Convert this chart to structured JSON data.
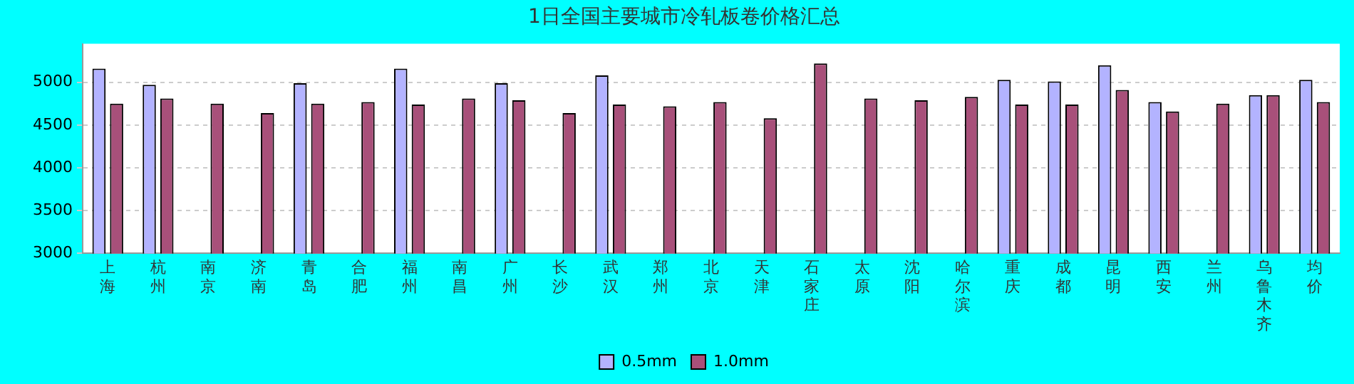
{
  "chart_data": {
    "type": "bar",
    "title": "1日全国主要城市冷轧板卷价格汇总",
    "categories": [
      "上海",
      "杭州",
      "南京",
      "济南",
      "青岛",
      "合肥",
      "福州",
      "南昌",
      "广州",
      "长沙",
      "武汉",
      "郑州",
      "北京",
      "天津",
      "石家庄",
      "太原",
      "沈阳",
      "哈尔滨",
      "重庆",
      "成都",
      "昆明",
      "西安",
      "兰州",
      "乌鲁木齐",
      "均价"
    ],
    "series": [
      {
        "name": "0.5mm",
        "color": "#b3b3ff",
        "values": [
          5160,
          4970,
          null,
          null,
          4990,
          null,
          5160,
          null,
          4990,
          null,
          5080,
          null,
          null,
          null,
          null,
          null,
          null,
          null,
          5030,
          5010,
          5200,
          4770,
          null,
          4850,
          5030
        ]
      },
      {
        "name": "1.0mm",
        "color": "#a8507a",
        "values": [
          4750,
          4810,
          4750,
          4640,
          4750,
          4770,
          4740,
          4810,
          4790,
          4640,
          4740,
          4720,
          4770,
          4580,
          5220,
          4810,
          4790,
          4830,
          4740,
          4740,
          4910,
          4660,
          4750,
          4850,
          4770
        ]
      }
    ],
    "ylim": [
      3000,
      5450
    ],
    "yticks": [
      3000,
      3500,
      4000,
      4500,
      5000
    ],
    "grid": "y",
    "legend": "bottom"
  }
}
